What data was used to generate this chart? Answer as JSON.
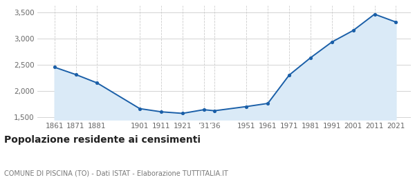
{
  "x_positions": [
    1861,
    1871,
    1881,
    1901,
    1911,
    1921,
    1931,
    1936,
    1951,
    1961,
    1971,
    1981,
    1991,
    2001,
    2011,
    2021
  ],
  "y_values": [
    2450,
    2310,
    2150,
    1660,
    1600,
    1570,
    1640,
    1620,
    1700,
    1760,
    2300,
    2630,
    2930,
    3150,
    3460,
    3310
  ],
  "x_tick_positions": [
    1861,
    1871,
    1881,
    1901,
    1911,
    1921,
    1931,
    1936,
    1951,
    1961,
    1971,
    1981,
    1991,
    2001,
    2011,
    2021
  ],
  "x_tick_labels": [
    "1861",
    "1871",
    "1881",
    "1901",
    "1911",
    "1921",
    "’31",
    "’36",
    "1951",
    "1961",
    "1971",
    "1981",
    "1991",
    "2001",
    "2011",
    "2021"
  ],
  "line_color": "#1a5fa8",
  "fill_color": "#daeaf7",
  "marker_color": "#1a5fa8",
  "bg_color": "#ffffff",
  "grid_color_h": "#cccccc",
  "grid_color_v": "#cccccc",
  "title": "Popolazione residente ai censimenti",
  "subtitle": "COMUNE DI PISCINA (TO) - Dati ISTAT - Elaborazione TUTTITALIA.IT",
  "title_fontsize": 10,
  "subtitle_fontsize": 7,
  "ylim": [
    1450,
    3620
  ],
  "yticks": [
    1500,
    2000,
    2500,
    3000,
    3500
  ],
  "ytick_labels": [
    "1,500",
    "2,000",
    "2,500",
    "3,000",
    "3,500"
  ],
  "tick_label_color": "#666666",
  "tick_label_fontsize": 7.5,
  "xlim_left": 1853,
  "xlim_right": 2028
}
